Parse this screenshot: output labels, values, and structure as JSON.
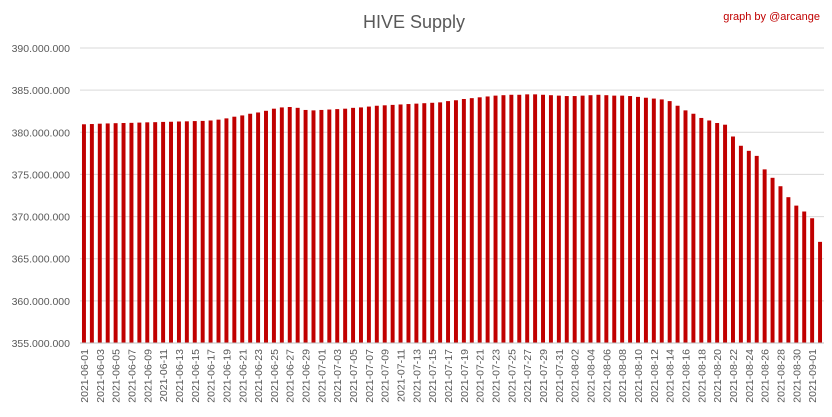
{
  "chart_data": {
    "type": "bar",
    "title": "HIVE Supply",
    "credit": "graph by @arcange",
    "xlabel": "",
    "ylabel": "",
    "ylim": [
      355000000,
      390000000
    ],
    "yticks": [
      355000000,
      360000000,
      365000000,
      370000000,
      375000000,
      380000000,
      385000000,
      390000000
    ],
    "ytick_labels": [
      "355.000.000",
      "360.000.000",
      "365.000.000",
      "370.000.000",
      "375.000.000",
      "380.000.000",
      "385.000.000",
      "390.000.000"
    ],
    "bar_color": "#c00000",
    "grid": true,
    "legend": "none",
    "categories": [
      "2021-06-01",
      "2021-06-02",
      "2021-06-03",
      "2021-06-04",
      "2021-06-05",
      "2021-06-06",
      "2021-06-07",
      "2021-06-08",
      "2021-06-09",
      "2021-06-10",
      "2021-06-11",
      "2021-06-12",
      "2021-06-13",
      "2021-06-14",
      "2021-06-15",
      "2021-06-16",
      "2021-06-17",
      "2021-06-18",
      "2021-06-19",
      "2021-06-20",
      "2021-06-21",
      "2021-06-22",
      "2021-06-23",
      "2021-06-24",
      "2021-06-25",
      "2021-06-26",
      "2021-06-27",
      "2021-06-28",
      "2021-06-29",
      "2021-06-30",
      "2021-07-01",
      "2021-07-02",
      "2021-07-03",
      "2021-07-04",
      "2021-07-05",
      "2021-07-06",
      "2021-07-07",
      "2021-07-08",
      "2021-07-09",
      "2021-07-10",
      "2021-07-11",
      "2021-07-12",
      "2021-07-13",
      "2021-07-14",
      "2021-07-15",
      "2021-07-16",
      "2021-07-17",
      "2021-07-18",
      "2021-07-19",
      "2021-07-20",
      "2021-07-21",
      "2021-07-22",
      "2021-07-23",
      "2021-07-24",
      "2021-07-25",
      "2021-07-26",
      "2021-07-27",
      "2021-07-28",
      "2021-07-29",
      "2021-07-30",
      "2021-07-31",
      "2021-08-01",
      "2021-08-02",
      "2021-08-03",
      "2021-08-04",
      "2021-08-05",
      "2021-08-06",
      "2021-08-07",
      "2021-08-08",
      "2021-08-09",
      "2021-08-10",
      "2021-08-11",
      "2021-08-12",
      "2021-08-13",
      "2021-08-14",
      "2021-08-15",
      "2021-08-16",
      "2021-08-17",
      "2021-08-18",
      "2021-08-19",
      "2021-08-20",
      "2021-08-21",
      "2021-08-22",
      "2021-08-23",
      "2021-08-24",
      "2021-08-25",
      "2021-08-26",
      "2021-08-27",
      "2021-08-28",
      "2021-08-29",
      "2021-08-30",
      "2021-08-31",
      "2021-09-01",
      "2021-09-02"
    ],
    "visible_tick_labels": [
      "2021-06-01",
      "2021-06-03",
      "2021-06-05",
      "2021-06-07",
      "2021-06-09",
      "2021-06-11",
      "2021-06-13",
      "2021-06-15",
      "2021-06-17",
      "2021-06-19",
      "2021-06-21",
      "2021-06-23",
      "2021-06-25",
      "2021-06-27",
      "2021-06-29",
      "2021-07-01",
      "2021-07-03",
      "2021-07-05",
      "2021-07-07",
      "2021-07-09",
      "2021-07-11",
      "2021-07-13",
      "2021-07-15",
      "2021-07-17",
      "2021-07-19",
      "2021-07-21",
      "2021-07-23",
      "2021-07-25",
      "2021-07-27",
      "2021-07-29",
      "2021-07-31",
      "2021-08-02",
      "2021-08-04",
      "2021-08-06",
      "2021-08-08",
      "2021-08-10",
      "2021-08-12",
      "2021-08-14",
      "2021-08-16",
      "2021-08-18",
      "2021-08-20",
      "2021-08-22",
      "2021-08-24",
      "2021-08-26",
      "2021-08-28",
      "2021-08-30",
      "2021-09-01"
    ],
    "values": [
      380950000,
      380980000,
      381020000,
      381050000,
      381080000,
      381100000,
      381120000,
      381150000,
      381180000,
      381200000,
      381230000,
      381250000,
      381280000,
      381300000,
      381330000,
      381350000,
      381400000,
      381500000,
      381650000,
      381850000,
      382000000,
      382200000,
      382350000,
      382550000,
      382800000,
      382950000,
      383000000,
      382900000,
      382650000,
      382600000,
      382650000,
      382700000,
      382750000,
      382800000,
      382900000,
      382950000,
      383050000,
      383150000,
      383200000,
      383250000,
      383300000,
      383350000,
      383400000,
      383450000,
      383500000,
      383550000,
      383700000,
      383800000,
      383950000,
      384050000,
      384150000,
      384250000,
      384350000,
      384400000,
      384450000,
      384450000,
      384500000,
      384500000,
      384450000,
      384400000,
      384350000,
      384300000,
      384300000,
      384350000,
      384400000,
      384450000,
      384400000,
      384350000,
      384350000,
      384300000,
      384200000,
      384100000,
      384000000,
      383900000,
      383700000,
      383150000,
      382600000,
      382200000,
      381700000,
      381400000,
      381100000,
      380900000,
      379500000,
      378400000,
      377800000,
      377200000,
      375600000,
      374600000,
      373600000,
      372300000,
      371300000,
      370600000,
      369800000,
      367000000
    ]
  }
}
